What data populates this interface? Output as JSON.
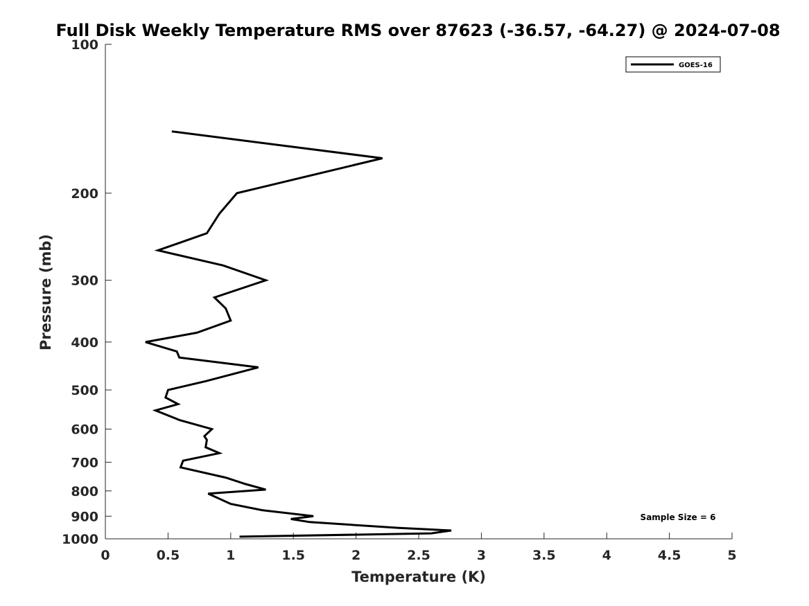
{
  "chart_data": {
    "type": "line",
    "title": "Full Disk Weekly Temperature RMS over 87623 (-36.57, -64.27) @ 2024-07-08",
    "xlabel": "Temperature (K)",
    "ylabel": "Pressure (mb)",
    "xlim": [
      0,
      5
    ],
    "ylim": [
      100,
      1000
    ],
    "y_scale": "log",
    "y_reversed": true,
    "x_ticks": [
      "0",
      "0.5",
      "1",
      "1.5",
      "2",
      "2.5",
      "3",
      "3.5",
      "4",
      "4.5",
      "5"
    ],
    "y_ticks": [
      "100",
      "200",
      "300",
      "400",
      "500",
      "600",
      "700",
      "800",
      "900",
      "1000"
    ],
    "grid": false,
    "legend_position": "top-right",
    "series": [
      {
        "name": "GOES-16",
        "color": "#000000",
        "points": [
          [
            0.53,
            150
          ],
          [
            2.21,
            170
          ],
          [
            1.05,
            200
          ],
          [
            0.91,
            220
          ],
          [
            0.81,
            241
          ],
          [
            0.42,
            261
          ],
          [
            0.94,
            280
          ],
          [
            1.28,
            300
          ],
          [
            0.87,
            325
          ],
          [
            0.96,
            342
          ],
          [
            1.0,
            362
          ],
          [
            0.73,
            383
          ],
          [
            0.32,
            400
          ],
          [
            0.57,
            418
          ],
          [
            0.59,
            430
          ],
          [
            1.22,
            450
          ],
          [
            0.8,
            480
          ],
          [
            0.5,
            500
          ],
          [
            0.48,
            518
          ],
          [
            0.58,
            534
          ],
          [
            0.4,
            550
          ],
          [
            0.59,
            575
          ],
          [
            0.85,
            600
          ],
          [
            0.79,
            620
          ],
          [
            0.81,
            631
          ],
          [
            0.8,
            653
          ],
          [
            0.91,
            671
          ],
          [
            0.62,
            695
          ],
          [
            0.6,
            717
          ],
          [
            0.96,
            752
          ],
          [
            1.12,
            775
          ],
          [
            1.28,
            795
          ],
          [
            0.82,
            810
          ],
          [
            1.0,
            850
          ],
          [
            1.25,
            875
          ],
          [
            1.66,
            900
          ],
          [
            1.48,
            912
          ],
          [
            1.63,
            925
          ],
          [
            2.33,
            950
          ],
          [
            2.76,
            962
          ],
          [
            2.6,
            975
          ],
          [
            1.07,
            990
          ]
        ]
      }
    ],
    "annotations": [
      "Sample Size = 6"
    ]
  }
}
